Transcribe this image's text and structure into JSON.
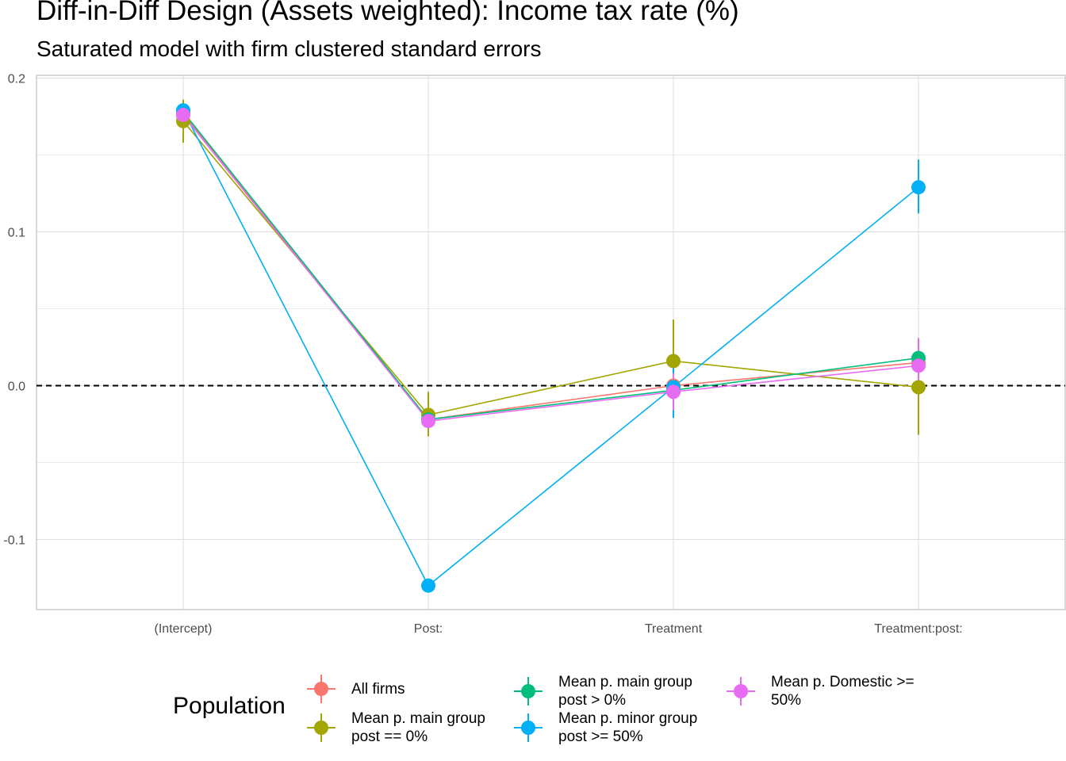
{
  "chart_data": {
    "type": "line",
    "title": "Diff-in-Diff Design (Assets weighted): Income tax rate  (%)",
    "subtitle": "Saturated model with firm clustered standard errors",
    "xlabel": "",
    "ylabel": "",
    "categories": [
      "(Intercept)",
      "Post:",
      "Treatment",
      "Treatment:post:"
    ],
    "ylim": [
      -0.145,
      0.2
    ],
    "yticks": [
      -0.1,
      0.0,
      0.1,
      0.2
    ],
    "ytick_labels": [
      "-0.1",
      "0.0",
      "0.1",
      "0.2"
    ],
    "reference_line": {
      "y": 0,
      "style": "dashed"
    },
    "grid": true,
    "legend": {
      "title": "Population",
      "position": "bottom"
    },
    "series": [
      {
        "name": "All firms",
        "color": "#F8766D",
        "values": [
          0.177,
          -0.022,
          0.0,
          0.015
        ],
        "lower": [
          0.172,
          -0.026,
          -0.003,
          0.011
        ],
        "upper": [
          0.182,
          -0.018,
          0.003,
          0.019
        ]
      },
      {
        "name": "Mean p. main group post == 0%",
        "color": "#A3A500",
        "values": [
          0.172,
          -0.019,
          0.016,
          -0.001
        ],
        "lower": [
          0.158,
          -0.033,
          -0.011,
          -0.032
        ],
        "upper": [
          0.186,
          -0.004,
          0.043,
          0.03
        ]
      },
      {
        "name": "Mean p. main group post > 0%",
        "color": "#00BF7D",
        "values": [
          0.178,
          -0.022,
          -0.003,
          0.018
        ],
        "lower": [
          0.174,
          -0.026,
          -0.007,
          0.014
        ],
        "upper": [
          0.182,
          -0.018,
          0.001,
          0.022
        ]
      },
      {
        "name": "Mean p. minor group post >= 50%",
        "color": "#00B0F6",
        "values": [
          0.179,
          -0.13,
          -0.001,
          0.129
        ],
        "lower": [
          0.176,
          -0.134,
          -0.021,
          0.112
        ],
        "upper": [
          0.182,
          -0.126,
          0.019,
          0.147
        ]
      },
      {
        "name": "Mean p. Domestic >= 50%",
        "color": "#E76BF3",
        "values": [
          0.176,
          -0.023,
          -0.004,
          0.013
        ],
        "lower": [
          0.172,
          -0.027,
          -0.016,
          -0.004
        ],
        "upper": [
          0.18,
          -0.019,
          0.008,
          0.031
        ]
      }
    ]
  },
  "legend_items": [
    {
      "label": "All firms"
    },
    {
      "label": "Mean p. main group\npost == 0%"
    },
    {
      "label": "Mean p. main group\npost > 0%"
    },
    {
      "label": "Mean p. minor group\npost >= 50%"
    },
    {
      "label": "Mean p. Domestic >=\n50%"
    }
  ]
}
